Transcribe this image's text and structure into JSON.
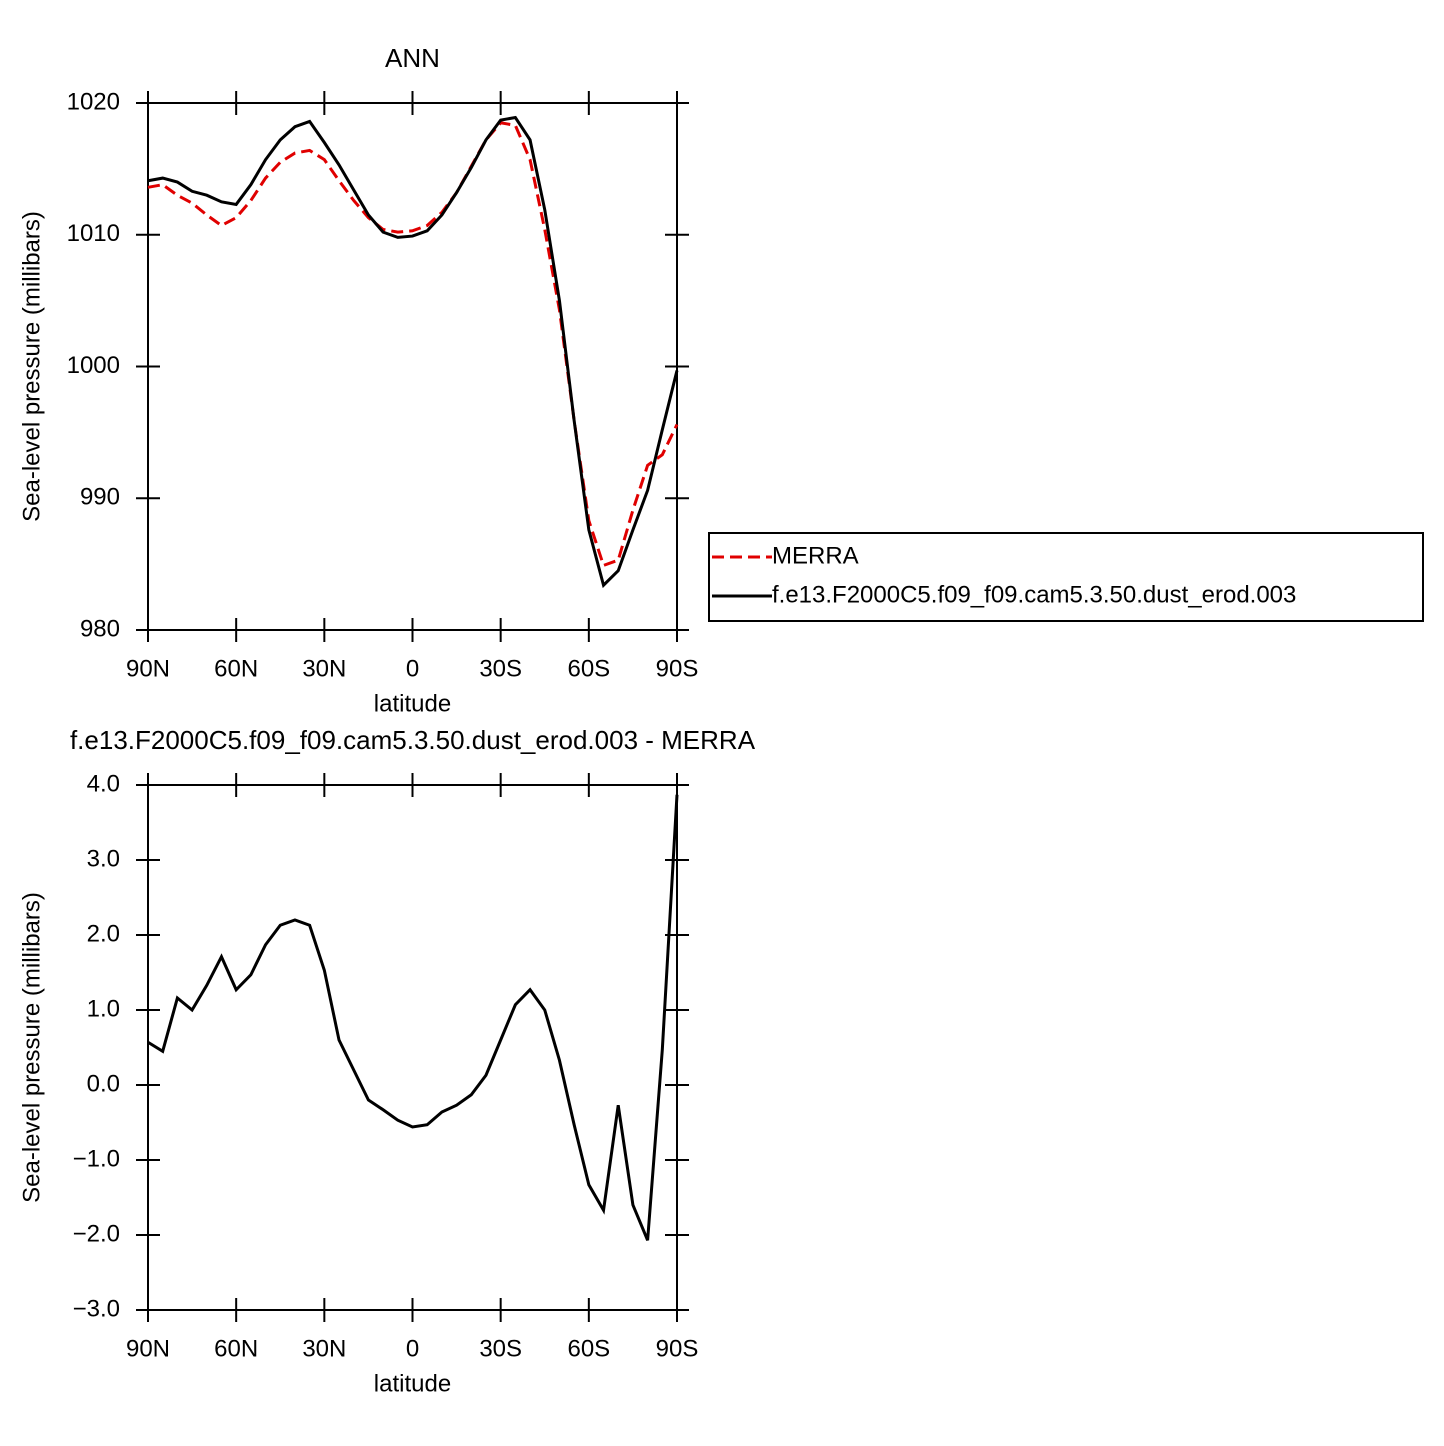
{
  "chart_data": [
    {
      "type": "line",
      "title": "ANN",
      "xlabel": "latitude",
      "ylabel": "Sea-level pressure (millibars)",
      "x": [
        90,
        85,
        80,
        75,
        70,
        65,
        60,
        55,
        50,
        45,
        40,
        35,
        30,
        25,
        20,
        15,
        10,
        5,
        0,
        -5,
        -10,
        -15,
        -20,
        -25,
        -30,
        -35,
        -40,
        -45,
        -50,
        -55,
        -60,
        -65,
        -70,
        -75,
        -80,
        -85,
        -90
      ],
      "series": [
        {
          "name": "MERRA",
          "color": "#e00000",
          "line_style": "dashed",
          "values": [
            1013.6,
            1013.8,
            1013.0,
            1012.4,
            1011.5,
            1010.7,
            1011.3,
            1012.6,
            1014.3,
            1015.5,
            1016.2,
            1016.4,
            1015.7,
            1014.1,
            1012.6,
            1011.3,
            1010.4,
            1010.2,
            1010.3,
            1010.7,
            1011.7,
            1013.2,
            1015.2,
            1017.2,
            1018.5,
            1018.3,
            1015.7,
            1010.4,
            1004.3,
            995.9,
            988.3,
            984.9,
            985.3,
            989.1,
            992.5,
            993.3,
            995.6
          ]
        },
        {
          "name": "f.e13.F2000C5.f09_f09.cam5.3.50.dust_erod.003",
          "color": "#000000",
          "line_style": "solid",
          "values": [
            1014.1,
            1014.3,
            1014.0,
            1013.3,
            1013.0,
            1012.5,
            1012.3,
            1013.8,
            1015.7,
            1017.2,
            1018.2,
            1018.6,
            1017.0,
            1015.3,
            1013.4,
            1011.5,
            1010.2,
            1009.8,
            1009.9,
            1010.3,
            1011.5,
            1013.2,
            1015.1,
            1017.2,
            1018.7,
            1018.9,
            1017.2,
            1011.9,
            1005.0,
            995.9,
            987.6,
            983.4,
            984.5,
            987.6,
            990.6,
            995.2,
            999.7
          ]
        }
      ],
      "xlim": [
        90,
        -90
      ],
      "xticks": [
        {
          "value": 90,
          "label": "90N"
        },
        {
          "value": 60,
          "label": "60N"
        },
        {
          "value": 30,
          "label": "30N"
        },
        0,
        {
          "value": -30,
          "label": "30S"
        },
        {
          "value": -60,
          "label": "60S"
        },
        {
          "value": -90,
          "label": "90S"
        }
      ],
      "ylim": [
        980,
        1020
      ],
      "yticks": [
        980,
        990,
        1000,
        1010,
        1020
      ],
      "legend": "right"
    },
    {
      "type": "line",
      "title": "f.e13.F2000C5.f09_f09.cam5.3.50.dust_erod.003 - MERRA",
      "xlabel": "latitude",
      "ylabel": "Sea-level pressure (millibars)",
      "x": [
        90,
        85,
        80,
        75,
        70,
        65,
        60,
        55,
        50,
        45,
        40,
        35,
        30,
        25,
        20,
        15,
        10,
        5,
        0,
        -5,
        -10,
        -15,
        -20,
        -25,
        -30,
        -35,
        -40,
        -45,
        -50,
        -55,
        -60,
        -65,
        -70,
        -75,
        -80,
        -85,
        -90
      ],
      "series": [
        {
          "color": "#000000",
          "line_style": "solid",
          "values": [
            0.57,
            0.45,
            1.16,
            1.0,
            1.33,
            1.71,
            1.27,
            1.47,
            1.87,
            2.13,
            2.2,
            2.13,
            1.53,
            0.6,
            0.2,
            -0.2,
            -0.33,
            -0.47,
            -0.56,
            -0.53,
            -0.36,
            -0.27,
            -0.13,
            0.13,
            0.6,
            1.07,
            1.27,
            1.0,
            0.33,
            -0.53,
            -1.33,
            -1.67,
            -0.27,
            -1.6,
            -2.07,
            0.47,
            3.87
          ]
        }
      ],
      "xlim": [
        90,
        -90
      ],
      "xticks": [
        {
          "value": 90,
          "label": "90N"
        },
        {
          "value": 60,
          "label": "60N"
        },
        {
          "value": 30,
          "label": "30N"
        },
        0,
        {
          "value": -30,
          "label": "30S"
        },
        {
          "value": -60,
          "label": "60S"
        },
        {
          "value": -90,
          "label": "90S"
        }
      ],
      "ylim": [
        -3,
        4
      ],
      "yticks": [
        {
          "value": -3,
          "label": "−3.0"
        },
        {
          "value": -2,
          "label": "−2.0"
        },
        {
          "value": -1,
          "label": "−1.0"
        },
        {
          "value": 0,
          "label": "0.0"
        },
        {
          "value": 1,
          "label": "1.0"
        },
        {
          "value": 2,
          "label": "2.0"
        },
        {
          "value": 3,
          "label": "3.0"
        },
        {
          "value": 4,
          "label": "4.0"
        }
      ]
    }
  ]
}
